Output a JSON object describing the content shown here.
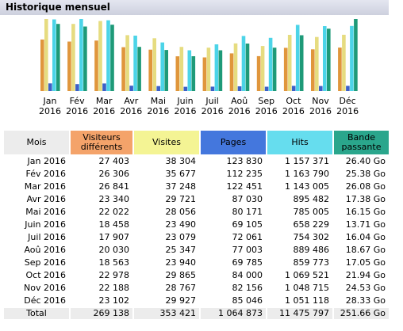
{
  "header": {
    "title": "Historique mensuel"
  },
  "colors": {
    "visitors": "#e0963c",
    "visits": "#e6dc80",
    "pages": "#3c60c8",
    "hits": "#4cd4e8",
    "bandwidth": "#1e9a78"
  },
  "chart_data": {
    "type": "bar",
    "categories": [
      "Jan",
      "Fév",
      "Mar",
      "Avr",
      "Mai",
      "Juin",
      "Juil",
      "Aoû",
      "Sep",
      "Oct",
      "Nov",
      "Déc"
    ],
    "year": "2016",
    "series": [
      {
        "name": "Visiteurs différents",
        "values": [
          27403,
          26306,
          26841,
          23340,
          22022,
          18458,
          17907,
          20030,
          18563,
          22978,
          22188,
          23102
        ]
      },
      {
        "name": "Visites",
        "values": [
          38304,
          35677,
          37248,
          29721,
          28056,
          23490,
          23079,
          25347,
          23940,
          29865,
          28767,
          29927
        ]
      },
      {
        "name": "Pages",
        "values": [
          123830,
          112235,
          122451,
          87030,
          80171,
          69105,
          72061,
          77003,
          69785,
          84000,
          82156,
          85046
        ]
      },
      {
        "name": "Hits",
        "values": [
          1157371,
          1163790,
          1143005,
          895482,
          785005,
          658229,
          754302,
          889486,
          859773,
          1069521,
          1048715,
          1051118
        ]
      },
      {
        "name": "Bande passante",
        "values": [
          26.4,
          25.38,
          26.08,
          17.38,
          16.15,
          13.71,
          16.04,
          18.67,
          17.05,
          21.94,
          24.53,
          28.33
        ]
      }
    ]
  },
  "table": {
    "headers": {
      "month": "Mois",
      "visitors_1": "Visiteurs",
      "visitors_2": "différents",
      "visits": "Visites",
      "pages": "Pages",
      "hits": "Hits",
      "bw_1": "Bande",
      "bw_2": "passante"
    },
    "rows": [
      {
        "month": "Jan 2016",
        "visitors": "27 403",
        "visits": "38 304",
        "pages": "123 830",
        "hits": "1 157 371",
        "bw": "26.40 Go"
      },
      {
        "month": "Fév 2016",
        "visitors": "26 306",
        "visits": "35 677",
        "pages": "112 235",
        "hits": "1 163 790",
        "bw": "25.38 Go"
      },
      {
        "month": "Mar 2016",
        "visitors": "26 841",
        "visits": "37 248",
        "pages": "122 451",
        "hits": "1 143 005",
        "bw": "26.08 Go"
      },
      {
        "month": "Avr 2016",
        "visitors": "23 340",
        "visits": "29 721",
        "pages": "87 030",
        "hits": "895 482",
        "bw": "17.38 Go"
      },
      {
        "month": "Mai 2016",
        "visitors": "22 022",
        "visits": "28 056",
        "pages": "80 171",
        "hits": "785 005",
        "bw": "16.15 Go"
      },
      {
        "month": "Juin 2016",
        "visitors": "18 458",
        "visits": "23 490",
        "pages": "69 105",
        "hits": "658 229",
        "bw": "13.71 Go"
      },
      {
        "month": "Juil 2016",
        "visitors": "17 907",
        "visits": "23 079",
        "pages": "72 061",
        "hits": "754 302",
        "bw": "16.04 Go"
      },
      {
        "month": "Aoû 2016",
        "visitors": "20 030",
        "visits": "25 347",
        "pages": "77 003",
        "hits": "889 486",
        "bw": "18.67 Go"
      },
      {
        "month": "Sep 2016",
        "visitors": "18 563",
        "visits": "23 940",
        "pages": "69 785",
        "hits": "859 773",
        "bw": "17.05 Go"
      },
      {
        "month": "Oct 2016",
        "visitors": "22 978",
        "visits": "29 865",
        "pages": "84 000",
        "hits": "1 069 521",
        "bw": "21.94 Go"
      },
      {
        "month": "Nov 2016",
        "visitors": "22 188",
        "visits": "28 767",
        "pages": "82 156",
        "hits": "1 048 715",
        "bw": "24.53 Go"
      },
      {
        "month": "Déc 2016",
        "visitors": "23 102",
        "visits": "29 927",
        "pages": "85 046",
        "hits": "1 051 118",
        "bw": "28.33 Go"
      }
    ],
    "total": {
      "month": "Total",
      "visitors": "269 138",
      "visits": "353 421",
      "pages": "1 064 873",
      "hits": "11 475 797",
      "bw": "251.66 Go"
    }
  }
}
